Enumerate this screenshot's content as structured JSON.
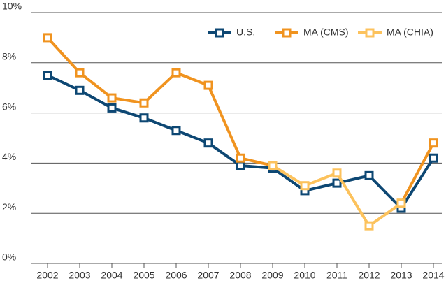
{
  "chart_data": {
    "type": "line",
    "categories": [
      "2002",
      "2003",
      "2004",
      "2005",
      "2006",
      "2007",
      "2008",
      "2009",
      "2010",
      "2011",
      "2012",
      "2013",
      "2014"
    ],
    "series": [
      {
        "name": "U.S.",
        "color": "#0d4773",
        "values": [
          7.5,
          6.9,
          6.2,
          5.8,
          5.3,
          4.8,
          3.9,
          3.8,
          2.9,
          3.2,
          3.5,
          2.2,
          4.2
        ]
      },
      {
        "name": "MA (CMS)",
        "color": "#f0931f",
        "values": [
          9.0,
          7.6,
          6.6,
          6.4,
          7.6,
          7.1,
          4.2,
          3.9,
          null,
          null,
          null,
          2.4,
          4.8
        ]
      },
      {
        "name": "MA (CHIA)",
        "color": "#fcc25c",
        "values": [
          null,
          null,
          null,
          null,
          null,
          null,
          null,
          3.9,
          3.1,
          3.6,
          1.5,
          2.4,
          null
        ]
      }
    ],
    "ylim": [
      0,
      10
    ],
    "yticks": [
      {
        "value": 0,
        "label": "0%"
      },
      {
        "value": 2,
        "label": "2%"
      },
      {
        "value": 4,
        "label": "4%"
      },
      {
        "value": 6,
        "label": "6%"
      },
      {
        "value": 8,
        "label": "8%"
      },
      {
        "value": 10,
        "label": "10%"
      }
    ],
    "grid": true,
    "legend": "top-right"
  }
}
